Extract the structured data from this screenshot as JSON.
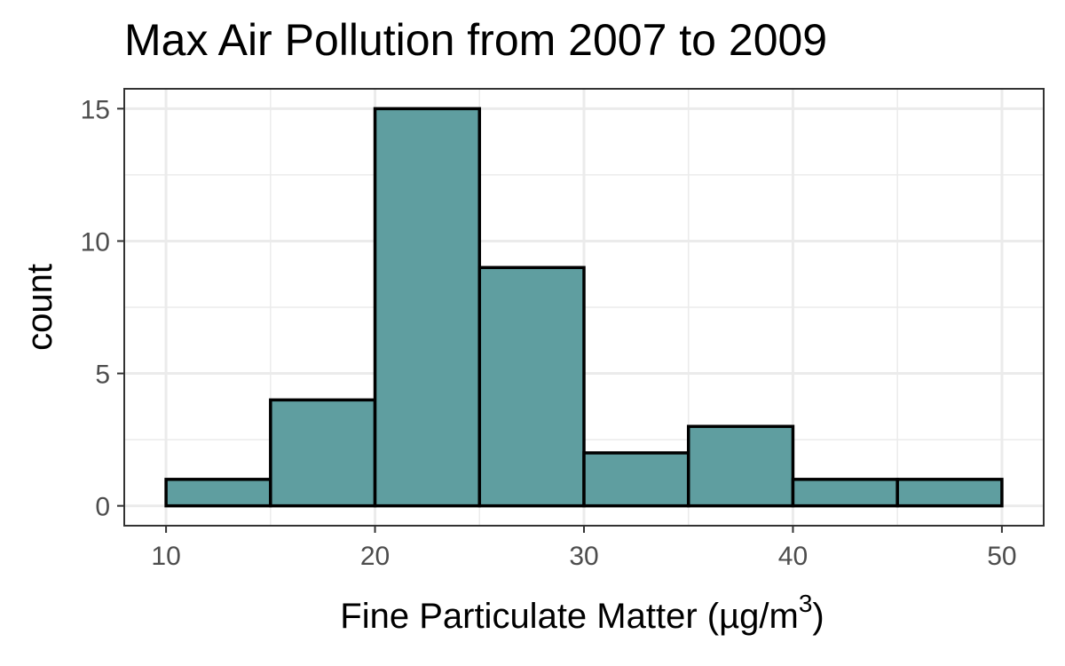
{
  "chart_data": {
    "type": "bar",
    "subtype": "histogram",
    "title": "Max Air Pollution from 2007 to 2009",
    "xlabel": "Fine Particulate Matter (µg/m",
    "xlabel_superscript": "3",
    "xlabel_suffix": ")",
    "ylabel": "count",
    "bin_width": 5,
    "bins": [
      {
        "start": 10,
        "end": 15,
        "count": 1
      },
      {
        "start": 15,
        "end": 20,
        "count": 4
      },
      {
        "start": 20,
        "end": 25,
        "count": 15
      },
      {
        "start": 25,
        "end": 30,
        "count": 9
      },
      {
        "start": 30,
        "end": 35,
        "count": 2
      },
      {
        "start": 35,
        "end": 40,
        "count": 3
      },
      {
        "start": 40,
        "end": 45,
        "count": 1
      },
      {
        "start": 45,
        "end": 50,
        "count": 1
      }
    ],
    "xlim": [
      8,
      52
    ],
    "ylim": [
      -0.75,
      15.75
    ],
    "xticks": [
      10,
      20,
      30,
      40,
      50
    ],
    "yticks": [
      0,
      5,
      10,
      15
    ],
    "grid": true,
    "bar_fill": "#5f9ea0",
    "bar_outline": "#000000"
  }
}
